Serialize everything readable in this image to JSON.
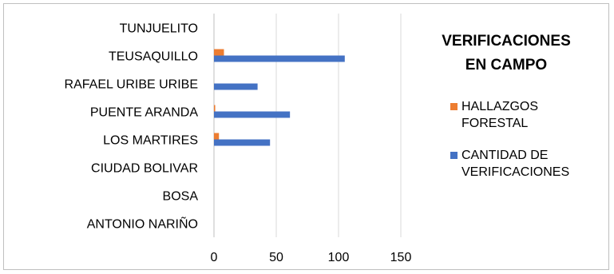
{
  "chart_data": {
    "type": "bar",
    "orientation": "horizontal",
    "title_lines": [
      "VERIFICACIONES",
      "EN CAMPO"
    ],
    "categories": [
      "ANTONIO NARIÑO",
      "BOSA",
      "CIUDAD BOLIVAR",
      "LOS MARTIRES",
      "PUENTE ARANDA",
      "RAFAEL URIBE URIBE",
      "TEUSAQUILLO",
      "TUNJUELITO"
    ],
    "series": [
      {
        "name": "CANTIDAD DE VERIFICACIONES",
        "legend_lines": [
          "CANTIDAD DE",
          "VERIFICACIONES"
        ],
        "color": "#4472c4",
        "values": [
          0,
          0,
          0,
          45,
          61,
          35,
          105,
          0
        ]
      },
      {
        "name": "HALLAZGOS FORESTAL",
        "legend_lines": [
          "HALLAZGOS",
          "FORESTAL"
        ],
        "color": "#ed7d31",
        "values": [
          0,
          0,
          0,
          4,
          1,
          0,
          8,
          0
        ]
      }
    ],
    "xlim": [
      0,
      150
    ],
    "xticks": [
      "0",
      "50",
      "100",
      "150"
    ],
    "grid": true,
    "legend_position": "right"
  }
}
